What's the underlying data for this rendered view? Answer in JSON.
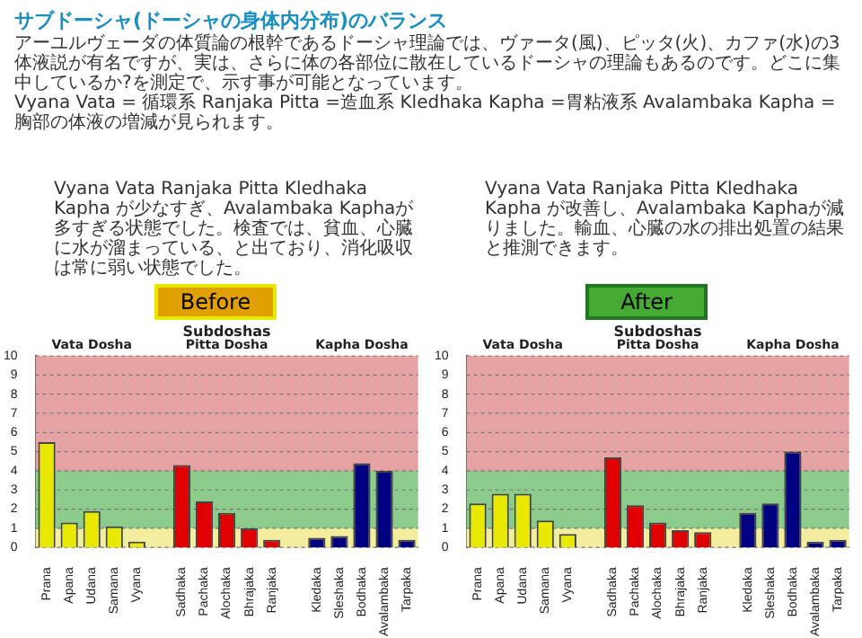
{
  "chart_data": [
    {
      "type": "other",
      "title": "サブドーシャ(ドーシャの身体内分布)のバランス",
      "annotations": [
        "アーユルヴェーダの体質論の根幹であるドーシャ理論では、ヴァータ(風)、ピッタ(火)、カファ(水)の3体液説が有名ですが、実は、さらに体の各部位に散在しているドーシャの理論もあるのです。どこに集中しているか?を測定で、示す事が可能となっています。",
        "Vyana Vata = 循環系 Ranjaka Pitta =造血系 Kledhaka Kapha =胃粘液系 Avalambaka Kapha =胸部の体液の増減が見られます。"
      ]
    },
    {
      "type": "bar",
      "title": "Before",
      "subtitle": "Subdoshas",
      "categories": [
        "Prana",
        "Apana",
        "Udana",
        "Samana",
        "Vyana",
        null,
        "Sadhaka",
        "Pachaka",
        "Alochaka",
        "Bhrajaka",
        "Ranjaka",
        null,
        "Kledaka",
        "Sleshaka",
        "Bodhaka",
        "Avalambaka",
        "Tarpaka"
      ],
      "values": [
        5.5,
        1.3,
        1.9,
        1.1,
        0.3,
        null,
        4.3,
        2.4,
        1.8,
        1.0,
        0.4,
        null,
        0.5,
        0.6,
        4.4,
        4.0,
        0.4
      ],
      "colors": [
        "#e8e800",
        "#e8e800",
        "#e8e800",
        "#e8e800",
        "#e8e800",
        null,
        "#e00000",
        "#e00000",
        "#e00000",
        "#e00000",
        "#e00000",
        null,
        "#000080",
        "#000080",
        "#000080",
        "#000080",
        "#000080"
      ],
      "ylim": [
        0,
        10
      ],
      "yticks": [
        0,
        1,
        2,
        3,
        4,
        5,
        6,
        7,
        8,
        9,
        10
      ],
      "grid": "y",
      "bands": [
        {
          "axis": "y",
          "from": 0,
          "to": 1,
          "color": "#f3eda0"
        },
        {
          "axis": "y",
          "from": 1,
          "to": 4,
          "color": "#8ccb8c"
        },
        {
          "axis": "y",
          "from": 4,
          "to": 10,
          "color": "#e6a3a3"
        }
      ],
      "annotations": [
        "Vyana Vata Ranjaka Pitta Kledhaka Kapha が少なすぎ、Avalambaka Kaphaが多すぎる状態でした。検査では、貧血、心臓に水が溜まっている、と出ており、消化吸収は常に弱い状態でした。",
        "Vata Dosha",
        "Pitta Dosha",
        "Kapha Dosha"
      ]
    },
    {
      "type": "bar",
      "title": "After",
      "subtitle": "Subdoshas",
      "categories": [
        "Prana",
        "Apana",
        "Udana",
        "Samana",
        "Vyana",
        null,
        "Sadhaka",
        "Pachaka",
        "Alochaka",
        "Bhrajaka",
        "Ranjaka",
        null,
        "Kledaka",
        "Sleshaka",
        "Bodhaka",
        "Avalambaka",
        "Tarpaka"
      ],
      "values": [
        2.3,
        2.8,
        2.8,
        1.4,
        0.7,
        null,
        4.7,
        2.2,
        1.3,
        0.9,
        0.8,
        null,
        1.8,
        2.3,
        5.0,
        0.3,
        0.4
      ],
      "colors": [
        "#e8e800",
        "#e8e800",
        "#e8e800",
        "#e8e800",
        "#e8e800",
        null,
        "#e00000",
        "#e00000",
        "#e00000",
        "#e00000",
        "#e00000",
        null,
        "#000080",
        "#000080",
        "#000080",
        "#000080",
        "#000080"
      ],
      "ylim": [
        0,
        10
      ],
      "yticks": [
        0,
        1,
        2,
        3,
        4,
        5,
        6,
        7,
        8,
        9,
        10
      ],
      "grid": "y",
      "bands": [
        {
          "axis": "y",
          "from": 0,
          "to": 1,
          "color": "#f3eda0"
        },
        {
          "axis": "y",
          "from": 1,
          "to": 4,
          "color": "#8ccb8c"
        },
        {
          "axis": "y",
          "from": 4,
          "to": 10,
          "color": "#e6a3a3"
        }
      ],
      "annotations": [
        "Vyana Vata Ranjaka Pitta Kledhaka Kapha が改善し、Avalambaka Kaphaが減りました。輸血、心臓の水の排出処置の結果と推測できます。",
        "Vata Dosha",
        "Pitta Dosha",
        "Kapha Dosha"
      ]
    }
  ]
}
